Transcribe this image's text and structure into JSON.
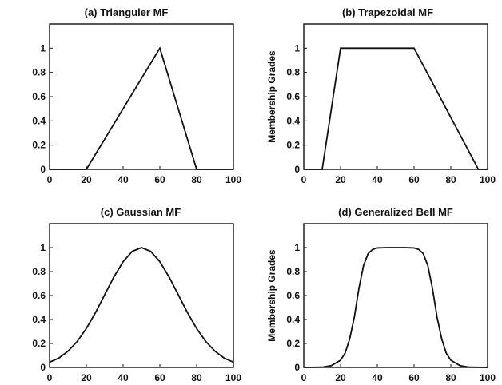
{
  "chart_data": [
    {
      "type": "line",
      "title": "(a) Trianguler MF",
      "xlabel": "",
      "ylabel": "",
      "xlim": [
        0,
        100
      ],
      "ylim": [
        0,
        1.2
      ],
      "xticks": [
        0,
        20,
        40,
        60,
        80,
        100
      ],
      "yticks": [
        0,
        0.2,
        0.4,
        0.6,
        0.8,
        1
      ],
      "ytick_labels": [
        "0",
        "0.2",
        "0.4",
        "0.6",
        "0.8",
        "1"
      ],
      "series": [
        {
          "x": [
            0,
            20,
            60,
            80,
            100
          ],
          "y": [
            0,
            0,
            1,
            0,
            0
          ]
        }
      ]
    },
    {
      "type": "line",
      "title": "(b) Trapezoidal MF",
      "xlabel": "",
      "ylabel": "Membership Grades",
      "xlim": [
        0,
        100
      ],
      "ylim": [
        0,
        1.2
      ],
      "xticks": [
        0,
        20,
        40,
        60,
        80,
        100
      ],
      "yticks": [
        0,
        0.2,
        0.4,
        0.6,
        0.8,
        1
      ],
      "ytick_labels": [
        "0",
        "0.2",
        "0.4",
        "0.6",
        "0.8",
        "1"
      ],
      "series": [
        {
          "x": [
            0,
            10,
            20,
            60,
            95,
            100
          ],
          "y": [
            0,
            0,
            1,
            1,
            0,
            0
          ]
        }
      ]
    },
    {
      "type": "line",
      "title": "(c) Gaussian MF",
      "xlabel": "",
      "ylabel": "",
      "xlim": [
        0,
        100
      ],
      "ylim": [
        0,
        1.2
      ],
      "xticks": [
        0,
        20,
        40,
        60,
        80,
        100
      ],
      "yticks": [
        0,
        0.2,
        0.4,
        0.6,
        0.8,
        1
      ],
      "ytick_labels": [
        "0",
        "0.2",
        "0.4",
        "0.6",
        "0.8",
        "1"
      ],
      "series": [
        {
          "x": [
            0,
            5,
            10,
            15,
            20,
            25,
            30,
            35,
            40,
            45,
            50,
            55,
            60,
            65,
            70,
            75,
            80,
            85,
            90,
            95,
            100
          ],
          "y": [
            0.044,
            0.078,
            0.135,
            0.216,
            0.325,
            0.458,
            0.607,
            0.755,
            0.882,
            0.969,
            1,
            0.969,
            0.882,
            0.755,
            0.607,
            0.458,
            0.325,
            0.216,
            0.135,
            0.078,
            0.044
          ]
        }
      ]
    },
    {
      "type": "line",
      "title": "(d) Generalized Bell MF",
      "xlabel": "",
      "ylabel": "Membership Grades",
      "xlim": [
        0,
        100
      ],
      "ylim": [
        0,
        1.2
      ],
      "xticks": [
        0,
        20,
        40,
        60,
        80,
        100
      ],
      "yticks": [
        0,
        0.2,
        0.4,
        0.6,
        0.8,
        1
      ],
      "ytick_labels": [
        "0",
        "0.2",
        "0.4",
        "0.6",
        "0.8",
        "1"
      ],
      "series": [
        {
          "x": [
            0,
            10,
            15,
            20,
            22.5,
            25,
            27.5,
            30,
            32.5,
            35,
            37.5,
            40,
            45,
            50,
            55,
            60,
            62.5,
            65,
            67.5,
            70,
            72.5,
            75,
            77.5,
            80,
            85,
            90,
            100
          ],
          "y": [
            0,
            0.002,
            0.015,
            0.06,
            0.12,
            0.24,
            0.42,
            0.66,
            0.85,
            0.95,
            0.985,
            0.997,
            1,
            1,
            1,
            0.997,
            0.985,
            0.95,
            0.85,
            0.66,
            0.42,
            0.24,
            0.12,
            0.06,
            0.015,
            0.002,
            0
          ]
        }
      ]
    }
  ]
}
